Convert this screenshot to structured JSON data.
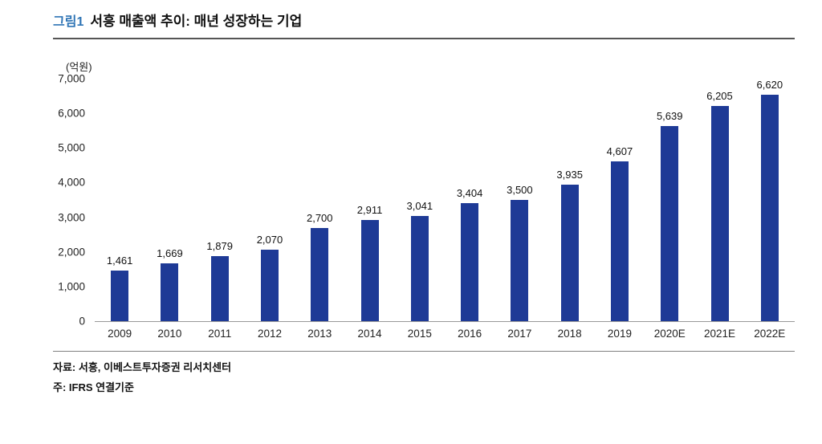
{
  "figure": {
    "label": "그림1",
    "title": "서흥 매출액 추이: 매년 성장하는 기업"
  },
  "chart_data": {
    "type": "bar",
    "title": "서흥 매출액 추이: 매년 성장하는 기업",
    "unit_label": "(억원)",
    "categories": [
      "2009",
      "2010",
      "2011",
      "2012",
      "2013",
      "2014",
      "2015",
      "2016",
      "2017",
      "2018",
      "2019",
      "2020E",
      "2021E",
      "2022E"
    ],
    "values": [
      1461,
      1669,
      1879,
      2070,
      2700,
      2911,
      3041,
      3404,
      3500,
      3935,
      4607,
      5639,
      6205,
      6620
    ],
    "xlabel": "",
    "ylabel": "(억원)",
    "ylim": [
      0,
      7000
    ],
    "ytick_step": 1000,
    "grid": false,
    "legend": "none",
    "value_labels": true,
    "bar_color": "#1e3a96"
  },
  "footer": {
    "source": "자료: 서흥, 이베스트투자증권 리서치센터",
    "note": "주: IFRS 연결기준"
  },
  "colors": {
    "figure_label": "#2e74b5",
    "bar": "#1e3a96",
    "header_divider": "#555555",
    "footer_divider_top": "#808080",
    "footer_divider_bottom": "#262626"
  }
}
